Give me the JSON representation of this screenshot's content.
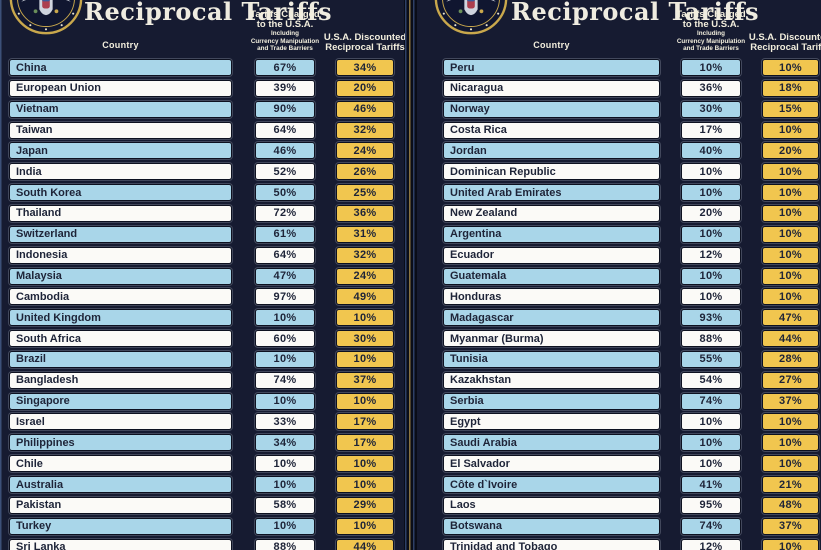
{
  "title": "Reciprocal Tariffs",
  "labels": {
    "country": "Country",
    "charged_line1": "Tariffs Charged",
    "charged_line2": "to the U.S.A.",
    "charged_sub1": "Including",
    "charged_sub2": "Currency Manipulation",
    "charged_sub3": "and Trade Barriers",
    "discounted_line1": "U.S.A. Discounted",
    "discounted_line2": "Reciprocal Tariffs"
  },
  "icons": {
    "seal": "presidential-seal-icon"
  },
  "colors": {
    "background": "#0a0d18",
    "poster_navy": "#161b31",
    "row_blue": "#a9d6e9",
    "row_white": "#fbfaf7",
    "cell_yellow": "#f1c64f",
    "cell_text": "#1e2438",
    "header_text": "#f2eedd",
    "seal_gold": "#c9a84c"
  },
  "chart_data": {
    "type": "table",
    "title": "Reciprocal Tariffs",
    "columns": [
      "Country",
      "Tariffs Charged to the U.S.A. Including Currency Manipulation and Trade Barriers",
      "U.S.A. Discounted Reciprocal Tariffs"
    ],
    "panels": [
      {
        "rows": [
          {
            "country": "China",
            "charged": "67%",
            "discounted": "34%"
          },
          {
            "country": "European Union",
            "charged": "39%",
            "discounted": "20%"
          },
          {
            "country": "Vietnam",
            "charged": "90%",
            "discounted": "46%"
          },
          {
            "country": "Taiwan",
            "charged": "64%",
            "discounted": "32%"
          },
          {
            "country": "Japan",
            "charged": "46%",
            "discounted": "24%"
          },
          {
            "country": "India",
            "charged": "52%",
            "discounted": "26%"
          },
          {
            "country": "South Korea",
            "charged": "50%",
            "discounted": "25%"
          },
          {
            "country": "Thailand",
            "charged": "72%",
            "discounted": "36%"
          },
          {
            "country": "Switzerland",
            "charged": "61%",
            "discounted": "31%"
          },
          {
            "country": "Indonesia",
            "charged": "64%",
            "discounted": "32%"
          },
          {
            "country": "Malaysia",
            "charged": "47%",
            "discounted": "24%"
          },
          {
            "country": "Cambodia",
            "charged": "97%",
            "discounted": "49%"
          },
          {
            "country": "United Kingdom",
            "charged": "10%",
            "discounted": "10%"
          },
          {
            "country": "South Africa",
            "charged": "60%",
            "discounted": "30%"
          },
          {
            "country": "Brazil",
            "charged": "10%",
            "discounted": "10%"
          },
          {
            "country": "Bangladesh",
            "charged": "74%",
            "discounted": "37%"
          },
          {
            "country": "Singapore",
            "charged": "10%",
            "discounted": "10%"
          },
          {
            "country": "Israel",
            "charged": "33%",
            "discounted": "17%"
          },
          {
            "country": "Philippines",
            "charged": "34%",
            "discounted": "17%"
          },
          {
            "country": "Chile",
            "charged": "10%",
            "discounted": "10%"
          },
          {
            "country": "Australia",
            "charged": "10%",
            "discounted": "10%"
          },
          {
            "country": "Pakistan",
            "charged": "58%",
            "discounted": "29%"
          },
          {
            "country": "Turkey",
            "charged": "10%",
            "discounted": "10%"
          },
          {
            "country": "Sri Lanka",
            "charged": "88%",
            "discounted": "44%"
          }
        ]
      },
      {
        "rows": [
          {
            "country": "Peru",
            "charged": "10%",
            "discounted": "10%"
          },
          {
            "country": "Nicaragua",
            "charged": "36%",
            "discounted": "18%"
          },
          {
            "country": "Norway",
            "charged": "30%",
            "discounted": "15%"
          },
          {
            "country": "Costa Rica",
            "charged": "17%",
            "discounted": "10%"
          },
          {
            "country": "Jordan",
            "charged": "40%",
            "discounted": "20%"
          },
          {
            "country": "Dominican Republic",
            "charged": "10%",
            "discounted": "10%"
          },
          {
            "country": "United Arab Emirates",
            "charged": "10%",
            "discounted": "10%"
          },
          {
            "country": "New Zealand",
            "charged": "20%",
            "discounted": "10%"
          },
          {
            "country": "Argentina",
            "charged": "10%",
            "discounted": "10%"
          },
          {
            "country": "Ecuador",
            "charged": "12%",
            "discounted": "10%"
          },
          {
            "country": "Guatemala",
            "charged": "10%",
            "discounted": "10%"
          },
          {
            "country": "Honduras",
            "charged": "10%",
            "discounted": "10%"
          },
          {
            "country": "Madagascar",
            "charged": "93%",
            "discounted": "47%"
          },
          {
            "country": "Myanmar (Burma)",
            "charged": "88%",
            "discounted": "44%"
          },
          {
            "country": "Tunisia",
            "charged": "55%",
            "discounted": "28%"
          },
          {
            "country": "Kazakhstan",
            "charged": "54%",
            "discounted": "27%"
          },
          {
            "country": "Serbia",
            "charged": "74%",
            "discounted": "37%"
          },
          {
            "country": "Egypt",
            "charged": "10%",
            "discounted": "10%"
          },
          {
            "country": "Saudi Arabia",
            "charged": "10%",
            "discounted": "10%"
          },
          {
            "country": "El Salvador",
            "charged": "10%",
            "discounted": "10%"
          },
          {
            "country": "Côte d`Ivoire",
            "charged": "41%",
            "discounted": "21%"
          },
          {
            "country": "Laos",
            "charged": "95%",
            "discounted": "48%"
          },
          {
            "country": "Botswana",
            "charged": "74%",
            "discounted": "37%"
          },
          {
            "country": "Trinidad and Tobago",
            "charged": "12%",
            "discounted": "10%"
          }
        ]
      }
    ]
  }
}
